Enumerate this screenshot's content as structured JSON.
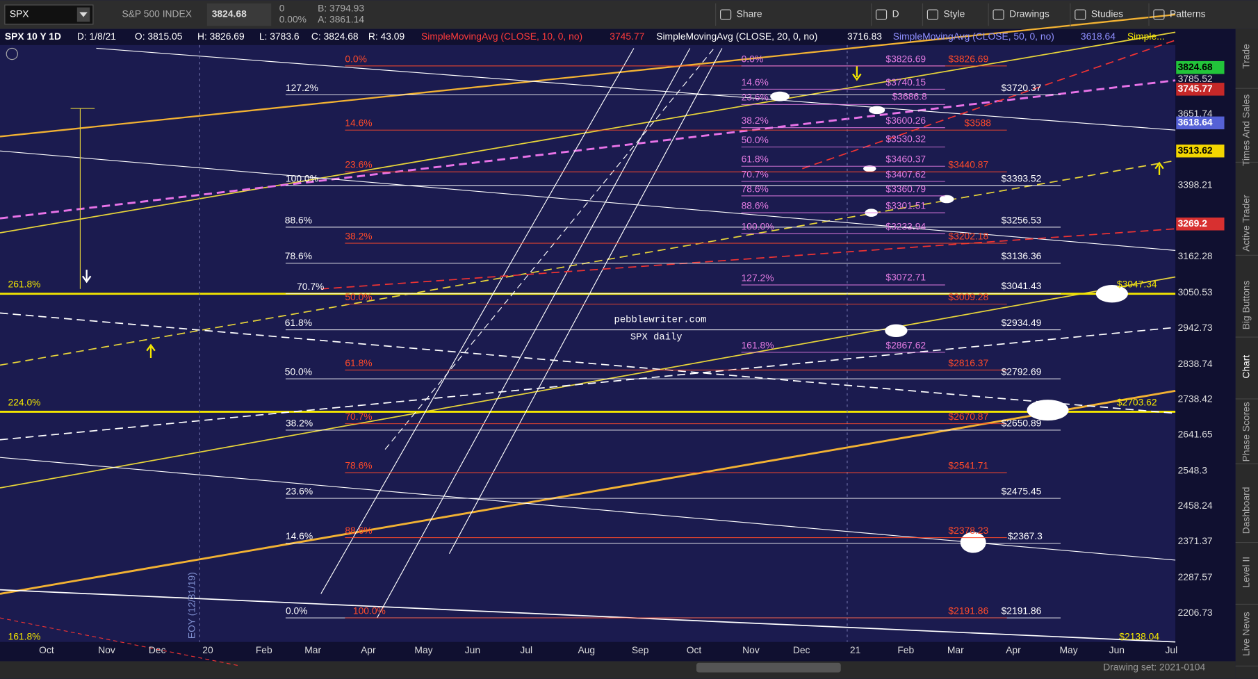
{
  "toolbar": {
    "symbol": "SPX",
    "description": "S&P 500 INDEX",
    "last": "3824.68",
    "change": "0",
    "change_pct": "0.00%",
    "bid": "B: 3794.93",
    "ask": "A: 3861.14",
    "buttons": [
      "Share",
      "D",
      "Style",
      "Drawings",
      "Studies",
      "Patterns"
    ]
  },
  "study_header": [
    "SPX 10 Y 1D",
    "D: 1/8/21",
    "O: 3815.05",
    "H: 3826.69",
    "L: 3783.6",
    "C: 3824.68",
    "R: 43.09",
    "SimpleMovingAvg (CLOSE, 10, 0, no)",
    "3745.77",
    "SimpleMovingAvg (CLOSE, 20, 0, no)",
    "3716.83",
    "SimpleMovingAvg (CLOSE, 50, 0, no)",
    "3618.64",
    "Simple..."
  ],
  "price_axis": [
    "3785.52",
    "3651.74",
    "3398.21",
    "3162.28",
    "3050.53",
    "2942.73",
    "2838.74",
    "2738.42",
    "2641.65",
    "2548.3",
    "2458.24",
    "2371.37",
    "2287.57",
    "2206.73"
  ],
  "price_badges": [
    "3824.68",
    "3745.77",
    "3618.64",
    "3513.62",
    "3269.2"
  ],
  "time_axis": [
    "Oct",
    "Nov",
    "Dec",
    "20",
    "Feb",
    "Mar",
    "Apr",
    "May",
    "Jun",
    "Jul",
    "Aug",
    "Sep",
    "Oct",
    "Nov",
    "Dec",
    "21",
    "Feb",
    "Mar",
    "Apr",
    "May",
    "Jun",
    "Jul"
  ],
  "white_fib_labels": [
    "127.2%",
    "100.0%",
    "88.6%",
    "78.6%",
    "70.7%",
    "61.8%",
    "50.0%",
    "38.2%",
    "23.6%",
    "14.6%",
    "0.0%"
  ],
  "red_fib_labels": [
    "0.0%",
    "14.6%",
    "23.6%",
    "38.2%",
    "50.0%",
    "61.8%",
    "70.7%",
    "78.6%",
    "88.6%",
    "100.0%"
  ],
  "magenta_fib_labels": [
    "0.0%",
    "14.6%",
    "23.6%",
    "38.2%",
    "50.0%",
    "61.8%",
    "70.7%",
    "78.6%",
    "88.6%",
    "100.0%",
    "127.2%",
    "161.8%"
  ],
  "magenta_prices": [
    "$3826.69",
    "$3740.15",
    "$3686.8",
    "$3600.26",
    "$3530.32",
    "$3460.37",
    "$3407.62",
    "$3360.79",
    "$3301.51",
    "$3233.94",
    "$3072.71",
    "$2867.62"
  ],
  "red_prices": [
    "$3826.69",
    "$3588",
    "$3440.87",
    "$3202.18",
    "$3009.28",
    "$2816.37",
    "$2670.87",
    "$2541.71",
    "$2378.23",
    "$2191.86"
  ],
  "white_prices": [
    "$3720.37",
    "$3393.52",
    "$3256.53",
    "$3136.36",
    "$3041.43",
    "$2934.49",
    "$2792.69",
    "$2650.89",
    "$2475.45",
    "$2367.3",
    "$2191.86"
  ],
  "edge_labels": [
    "261.8%",
    "224.0%",
    "161.8%",
    "$3047.34",
    "$2703.62",
    "$2138.04"
  ],
  "watermark": [
    "pebblewriter.com",
    "SPX daily"
  ],
  "eoy_label": "EOY (12/31/19)",
  "side_tabs": [
    "Trade",
    "Times And Sales",
    "Active Trader",
    "Big Buttons",
    "Chart",
    "Phase Scores",
    "Dashboard",
    "Level II",
    "Live News"
  ],
  "status": "Drawing set: 2021-0104"
}
